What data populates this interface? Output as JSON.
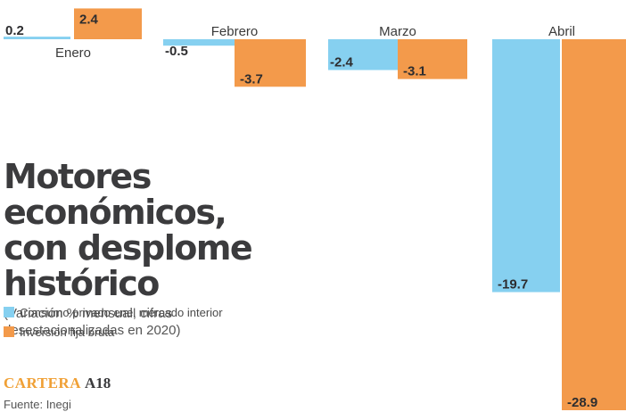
{
  "chart_data": {
    "type": "bar",
    "title_lines": [
      "Motores económicos,",
      "con desplome histórico"
    ],
    "subtitle_lines": [
      "(Variación % mensual, cifras",
      "desestacionalizadas en 2020)"
    ],
    "categories": [
      "Enero",
      "Febrero",
      "Marzo",
      "Abril"
    ],
    "series": [
      {
        "name": "Consumo privado enel mercado interior",
        "color": "#86d0f0",
        "values": [
          0.2,
          -0.5,
          -2.4,
          -19.7
        ]
      },
      {
        "name": "Inversión fija bruta",
        "color": "#f39a4b",
        "values": [
          2.4,
          -3.7,
          -3.1,
          -28.9
        ]
      }
    ],
    "value_labels": [
      [
        "0.2",
        "-0.5",
        "-2.4",
        "-19.7"
      ],
      [
        "2.4",
        "-3.7",
        "-3.1",
        "-28.9"
      ]
    ],
    "ylim": [
      -28.9,
      2.4
    ],
    "grid": false,
    "legend_position": "bottom-left"
  },
  "footer": {
    "brand": "CARTERA",
    "page": "A18",
    "source": "Fuente: Inegi"
  }
}
